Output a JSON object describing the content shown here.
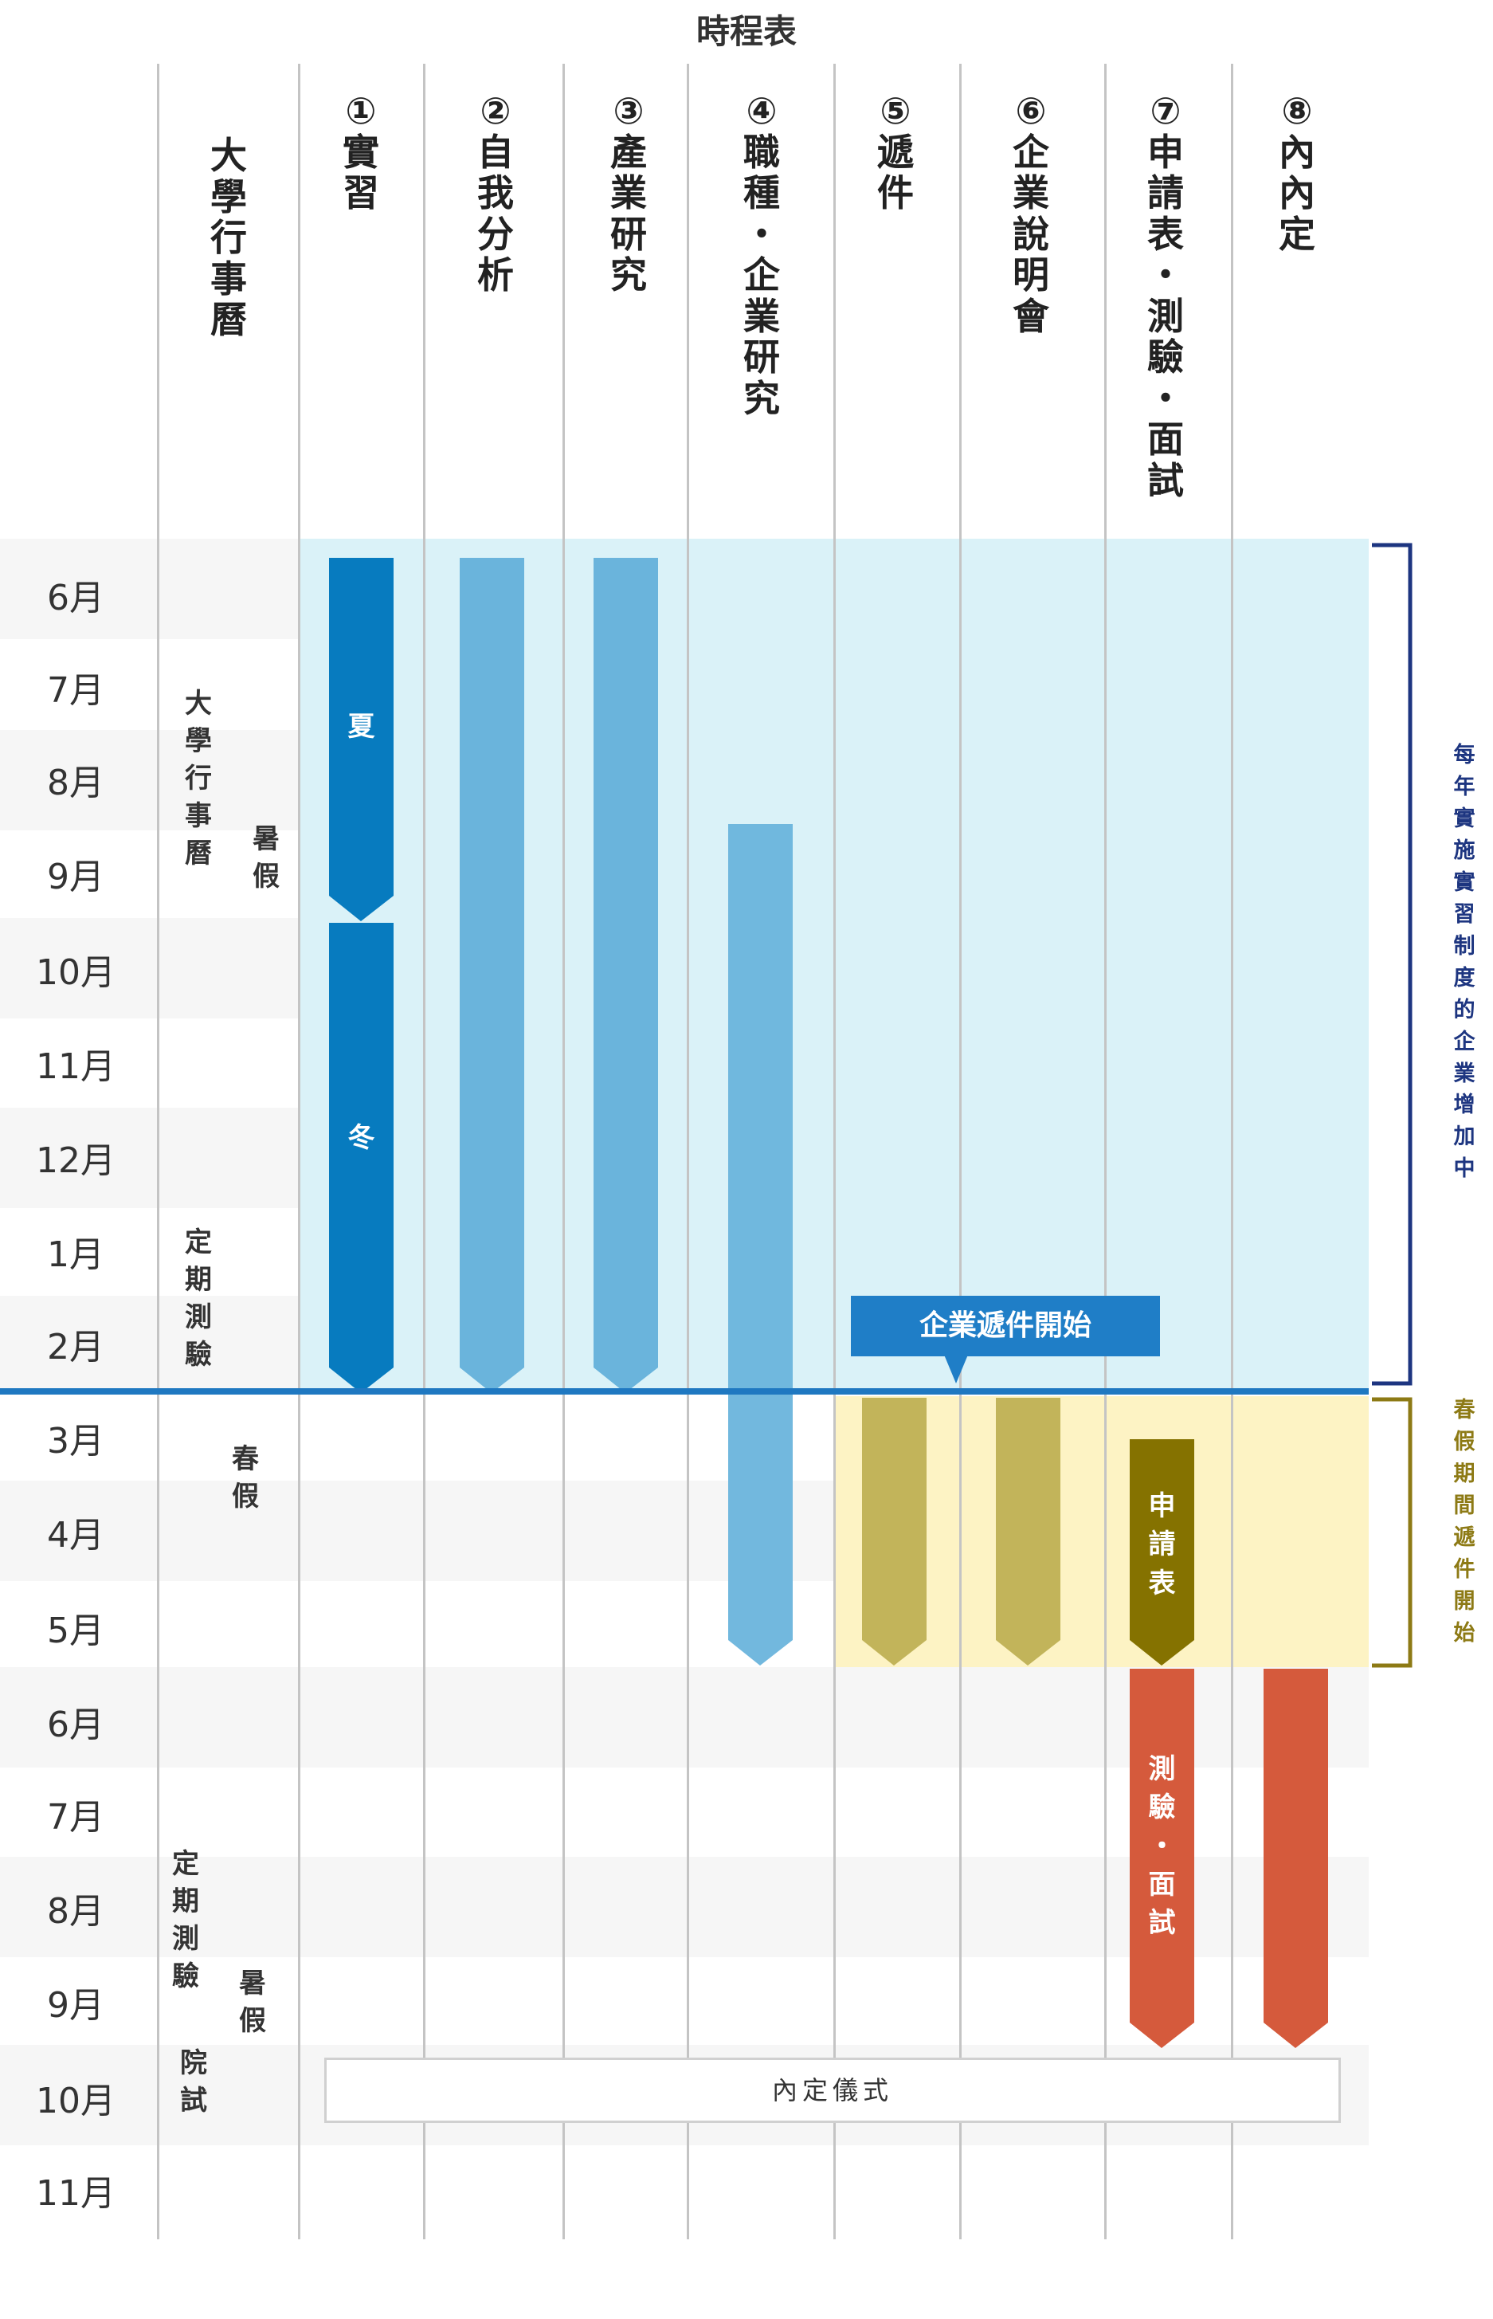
{
  "title": "時程表",
  "calendar_column_label": "大學行事曆",
  "columns": [
    {
      "number": "①",
      "label": "實習"
    },
    {
      "number": "②",
      "label": "自我分析"
    },
    {
      "number": "③",
      "label": "產業研究"
    },
    {
      "number": "④",
      "label": "職種・企業研究"
    },
    {
      "number": "⑤",
      "label": "遞件"
    },
    {
      "number": "⑥",
      "label": "企業說明會"
    },
    {
      "number": "⑦",
      "label": "申請表・測驗・面試"
    },
    {
      "number": "⑧",
      "label": "內內定"
    }
  ],
  "months": [
    "6月",
    "7月",
    "8月",
    "9月",
    "10月",
    "11月",
    "12月",
    "1月",
    "2月",
    "3月",
    "4月",
    "5月",
    "6月",
    "7月",
    "8月",
    "9月",
    "10月",
    "11月"
  ],
  "calendar_notes": {
    "year1_calendar": "大學行事曆",
    "year1_summer": "暑假",
    "year1_exam": "定期測驗",
    "spring": "春假",
    "year2_exam": "定期測驗",
    "year2_summer": "暑假",
    "year2_grad_exam": "院試"
  },
  "bars": {
    "internship_summer": "夏",
    "internship_winter": "冬",
    "application_form": "申請表",
    "test_interview": "測驗・面試"
  },
  "callout": "企業遞件開始",
  "ceremony": "內定儀式",
  "side_notes": {
    "internship_increase": "每年實施實習制度的企業增加中",
    "spring_application": "春假期間遞件開始"
  },
  "colors": {
    "dark_blue": "#077bbf",
    "light_blue": "#6ab4dc",
    "olive": "#c2b45a",
    "dark_olive": "#857200",
    "red_orange": "#d55a3c",
    "navy": "#1d3580",
    "gold": "#8d7a15",
    "divider": "#1f78c1"
  }
}
